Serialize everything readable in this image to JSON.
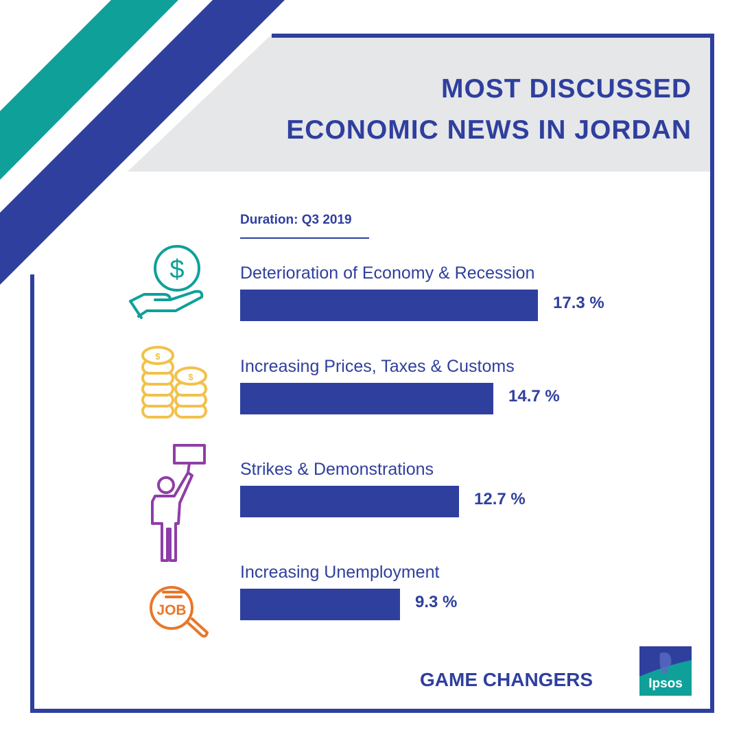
{
  "title": {
    "line1": "MOST DISCUSSED",
    "line2": "ECONOMIC NEWS IN JORDAN"
  },
  "duration_label": "Duration: Q3 2019",
  "chart_data": {
    "type": "bar",
    "orientation": "horizontal",
    "categories": [
      "Deterioration of Economy & Recession",
      "Increasing Prices, Taxes & Customs",
      "Strikes & Demonstrations",
      "Increasing Unemployment"
    ],
    "values": [
      17.3,
      14.7,
      12.7,
      9.3
    ],
    "value_labels": [
      "17.3 %",
      "14.7 %",
      "12.7 %",
      "9.3 %"
    ],
    "xlim": [
      0,
      17.3
    ],
    "bar_color": "#2f3f9e",
    "grid": false,
    "legend": "none"
  },
  "icons": [
    "money-hand-icon",
    "coin-stacks-icon",
    "protester-icon",
    "job-search-icon"
  ],
  "footer": {
    "tagline": "GAME CHANGERS",
    "logo_text": "Ipsos"
  },
  "colors": {
    "navy": "#2f3f9e",
    "teal": "#0fa09a",
    "gold": "#f2c14a",
    "purple": "#8e3ea6",
    "orange": "#e8772a",
    "grey_band": "#e6e7e9"
  }
}
